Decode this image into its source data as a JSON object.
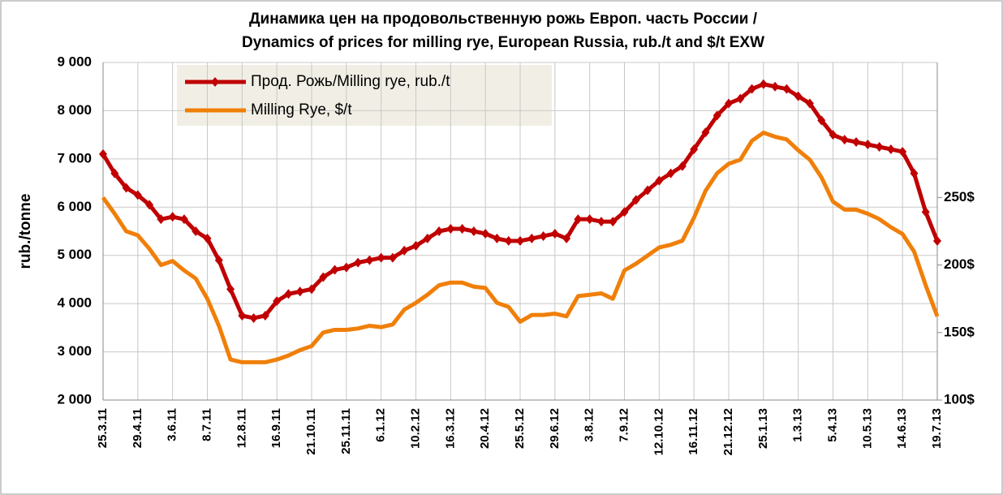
{
  "chart_data": {
    "type": "line",
    "title": "Динамика цен на продовольственную рожь Европ. часть России /",
    "subtitle": "Dynamics of prices for milling rye, European Russia, rub./t and $/t EXW",
    "ylabel": "rub./tonne",
    "categories": [
      "25.3.11",
      null,
      null,
      "29.4.11",
      null,
      null,
      "3.6.11",
      null,
      null,
      "8.7.11",
      null,
      null,
      "12.8.11",
      null,
      null,
      "16.9.11",
      null,
      null,
      "21.10.11",
      null,
      null,
      "25.11.11",
      null,
      null,
      "6.1.12",
      null,
      null,
      "10.2.12",
      null,
      null,
      "16.3.12",
      null,
      null,
      "20.4.12",
      null,
      null,
      "25.5.12",
      null,
      null,
      "29.6.12",
      null,
      null,
      "3.8.12",
      null,
      null,
      "7.9.12",
      null,
      null,
      "12.10.12",
      null,
      null,
      "16.11.12",
      null,
      null,
      "21.12.12",
      null,
      null,
      "25.1.13",
      null,
      null,
      "1.3.13",
      null,
      null,
      "5.4.13",
      null,
      null,
      "10.5.13",
      null,
      null,
      "14.6.13",
      null,
      null,
      "19.7.13"
    ],
    "series": [
      {
        "name": "Прод. Рожь/Milling rye, rub./t",
        "color": "#c00000",
        "values": [
          7100,
          6700,
          6400,
          6250,
          6050,
          5750,
          5800,
          5750,
          5500,
          5350,
          4900,
          4300,
          3750,
          3700,
          3750,
          4050,
          4200,
          4250,
          4300,
          4550,
          4700,
          4750,
          4850,
          4900,
          4950,
          4950,
          5100,
          5200,
          5350,
          5500,
          5550,
          5550,
          5500,
          5450,
          5350,
          5300,
          5300,
          5350,
          5400,
          5450,
          5350,
          5750,
          5750,
          5700,
          5700,
          5900,
          6150,
          6350,
          6550,
          6700,
          6850,
          7200,
          7550,
          7900,
          8150,
          8250,
          8450,
          8550,
          8500,
          8450,
          8300,
          8150,
          7800,
          7500,
          7400,
          7350,
          7300,
          7250,
          7200,
          7150,
          6700,
          5900,
          5300
        ]
      },
      {
        "name": "Milling Rye, $/t",
        "color": "#f07f09",
        "axis": "y2",
        "values": [
          250,
          238,
          225,
          222,
          212,
          200,
          203,
          196,
          190,
          175,
          155,
          130,
          128,
          128,
          128,
          130,
          133,
          137,
          140,
          150,
          152,
          152,
          153,
          155,
          154,
          156,
          167,
          172,
          178,
          185,
          187,
          187,
          184,
          183,
          172,
          169,
          158,
          163,
          163,
          164,
          162,
          177,
          178,
          179,
          175,
          196,
          201,
          207,
          213,
          215,
          218,
          235,
          255,
          268,
          275,
          278,
          292,
          298,
          295,
          293,
          285,
          278,
          265,
          247,
          241,
          241,
          238,
          234,
          228,
          223,
          210,
          185,
          162
        ]
      }
    ],
    "ylim": [
      2000,
      9000
    ],
    "yticks": [
      {
        "value": 2000,
        "label": "2 000"
      },
      {
        "value": 3000,
        "label": "3 000"
      },
      {
        "value": 4000,
        "label": "4 000"
      },
      {
        "value": 5000,
        "label": "5 000"
      },
      {
        "value": 6000,
        "label": "6 000"
      },
      {
        "value": 7000,
        "label": "7 000"
      },
      {
        "value": 8000,
        "label": "8 000"
      },
      {
        "value": 9000,
        "label": "9 000"
      }
    ],
    "y2lim": [
      100,
      350
    ],
    "y2ticks": [
      {
        "value": 100,
        "label": "100$"
      },
      {
        "value": 150,
        "label": "150$"
      },
      {
        "value": 200,
        "label": "200$"
      },
      {
        "value": 250,
        "label": "250$"
      }
    ],
    "grid": true
  }
}
